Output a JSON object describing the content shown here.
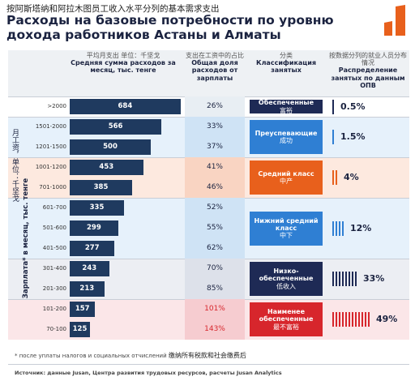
{
  "header": {
    "title_zh": "按阿斯塔纳和阿拉木图员工收入水平分列的基本需求支出",
    "title_ru": "Расходы на базовые потребности по уровню дохода работников Астаны и Алматы"
  },
  "columns": [
    {
      "zh": "平均月支出 单位：千坚戈",
      "ru": "Средняя сумма расходов за месяц, тыс. тенге"
    },
    {
      "zh": "支出在工资中的占比",
      "ru": "Общая доля расходов от зарплаты"
    },
    {
      "zh": "分类",
      "ru": "Классификация занятых"
    },
    {
      "zh": "按数据分列的就业人员分布情况",
      "ru": "Распределение занятых по данным ОПВ"
    }
  ],
  "y_label": {
    "zh": "月工资，单位：千坚戈",
    "ru": "Зарплата* в месяц, тыс. тенге"
  },
  "chart_data": {
    "type": "bar",
    "orientation": "horizontal",
    "categories": [
      ">2000",
      "1501-2000",
      "1201-1500",
      "1001-1200",
      "701-1000",
      "601-700",
      "501-600",
      "401-500",
      "301-400",
      "201-300",
      "101-200",
      "70-100"
    ],
    "values": [
      684,
      566,
      500,
      453,
      385,
      335,
      299,
      277,
      243,
      213,
      157,
      125
    ],
    "color": "#1f3a5f"
  },
  "shares": [
    "26%",
    "33%",
    "37%",
    "41%",
    "46%",
    "52%",
    "55%",
    "62%",
    "70%",
    "85%",
    "101%",
    "143%"
  ],
  "groups": [
    {
      "ru": "Обеспеченные",
      "zh": "富裕",
      "distribution": "0.5%",
      "color": "#1e2a55",
      "background": "#ffffff",
      "accent": "#e8eef3",
      "share_color": "#1b2340"
    },
    {
      "ru": "Преуспевающие",
      "zh": "成功",
      "distribution": "1.5%",
      "color": "#2f7fd3",
      "background": "#e6f1fb",
      "accent": "#cfe3f5",
      "share_color": "#1b2340"
    },
    {
      "ru": "Средний класс",
      "zh": "中产",
      "distribution": "4%",
      "color": "#e8601c",
      "background": "#fde9df",
      "accent": "#f9d4c2",
      "share_color": "#1b2340"
    },
    {
      "ru": "Нижний средний класс",
      "zh": "中下",
      "distribution": "12%",
      "color": "#2f7fd3",
      "background": "#e6f1fb",
      "accent": "#cfe3f5",
      "share_color": "#1b2340"
    },
    {
      "ru": "Низко-обеспеченные",
      "zh": "低收入",
      "distribution": "33%",
      "color": "#1e2a55",
      "background": "#eceef3",
      "accent": "#dde1ea",
      "share_color": "#1b2340"
    },
    {
      "ru": "Наименее обеспеченные",
      "zh": "最不富裕",
      "distribution": "49%",
      "color": "#d7262c",
      "background": "#fbe6e8",
      "accent": "#f6ccd0",
      "share_color": "#d7262c"
    }
  ],
  "footnote": {
    "ru": "* после уплаты налогов и социальных отчислений",
    "zh": "缴纳所有税款和社会缴费后"
  },
  "source": "Источник: данные Jusan, Центра развития трудовых ресурсов, расчеты Jusan Analytics"
}
